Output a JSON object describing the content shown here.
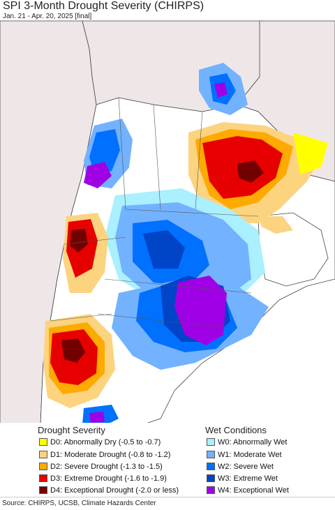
{
  "title": "SPI 3-Month Drought Severity (CHIRPS)",
  "subtitle": "Jan. 21 - Apr. 20, 2025 [final]",
  "legend": {
    "drought_heading": "Drought Severity",
    "wet_heading": "Wet Conditions",
    "drought": [
      {
        "label": "D0: Abnormally Dry (-0.5 to -0.7)",
        "color": "#ffff00"
      },
      {
        "label": "D1: Moderate Drought (-0.8 to -1.2)",
        "color": "#fcd37f"
      },
      {
        "label": "D2: Severe Drought (-1.3 to -1.5)",
        "color": "#ffaa00"
      },
      {
        "label": "D3: Extreme Drought (-1.6 to -1.9)",
        "color": "#e60000"
      },
      {
        "label": "D4: Exceptional Drought (-2.0 or less)",
        "color": "#730000"
      }
    ],
    "wet": [
      {
        "label": "W0: Abnormally Wet",
        "color": "#aaf0ff"
      },
      {
        "label": "W1: Moderate Wet",
        "color": "#73b2ff"
      },
      {
        "label": "W2: Severe Wet",
        "color": "#0070ff"
      },
      {
        "label": "W3: Extreme Wet",
        "color": "#0044c8"
      },
      {
        "label": "W4: Exceptional Wet",
        "color": "#a000e6"
      }
    ]
  },
  "source": "Source: CHIRPS, UCSB, Climate Hazards Center",
  "colors": {
    "ocean": "#ffffff",
    "neighbor_land": "#efe7e7",
    "border": "#444444"
  }
}
